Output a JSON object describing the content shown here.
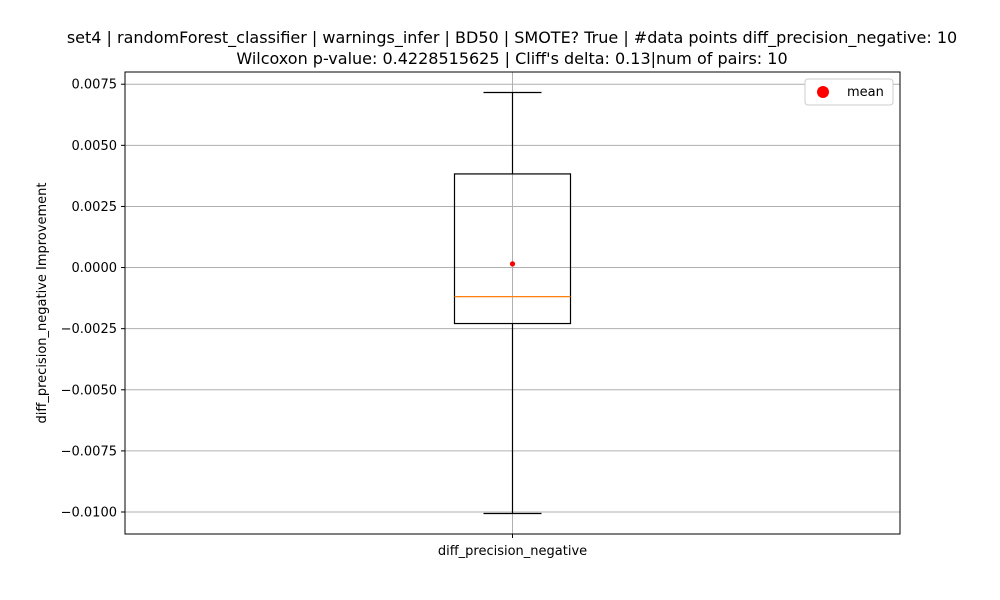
{
  "chart_data": {
    "type": "box",
    "title": "set4 | randomForest_classifier | warnings_infer | BD50 | SMOTE? True | #data points diff_precision_negative: 10",
    "subtitle": "Wilcoxon p-value: 0.4228515625 | Cliff's delta: 0.13|num of pairs: 10",
    "xlabel": "",
    "ylabel": "diff_precision_negative Improvement",
    "categories": [
      "diff_precision_negative"
    ],
    "ylim": [
      -0.0109,
      0.008
    ],
    "yticks": [
      0.0075,
      0.005,
      0.0025,
      0.0,
      -0.0025,
      -0.005,
      -0.0075,
      -0.01
    ],
    "ytick_labels": [
      "0.0075",
      "0.0050",
      "0.0025",
      "0.0000",
      "−0.0025",
      "−0.0050",
      "−0.0075",
      "−0.0100"
    ],
    "grid": true,
    "legend": {
      "placement": "top-right",
      "entries": [
        {
          "label": "mean",
          "color": "#ff0000",
          "marker": "circle"
        }
      ]
    },
    "boxes": [
      {
        "category": "diff_precision_negative",
        "whisker_low": -0.01006,
        "q1": -0.00229,
        "median": -0.00119,
        "q3": 0.00383,
        "whisker_high": 0.00716,
        "mean": 0.00015
      }
    ],
    "colors": {
      "box": "#000000",
      "median": "#ff7f0e",
      "mean": "#ff0000",
      "grid": "#b0b0b0"
    }
  }
}
